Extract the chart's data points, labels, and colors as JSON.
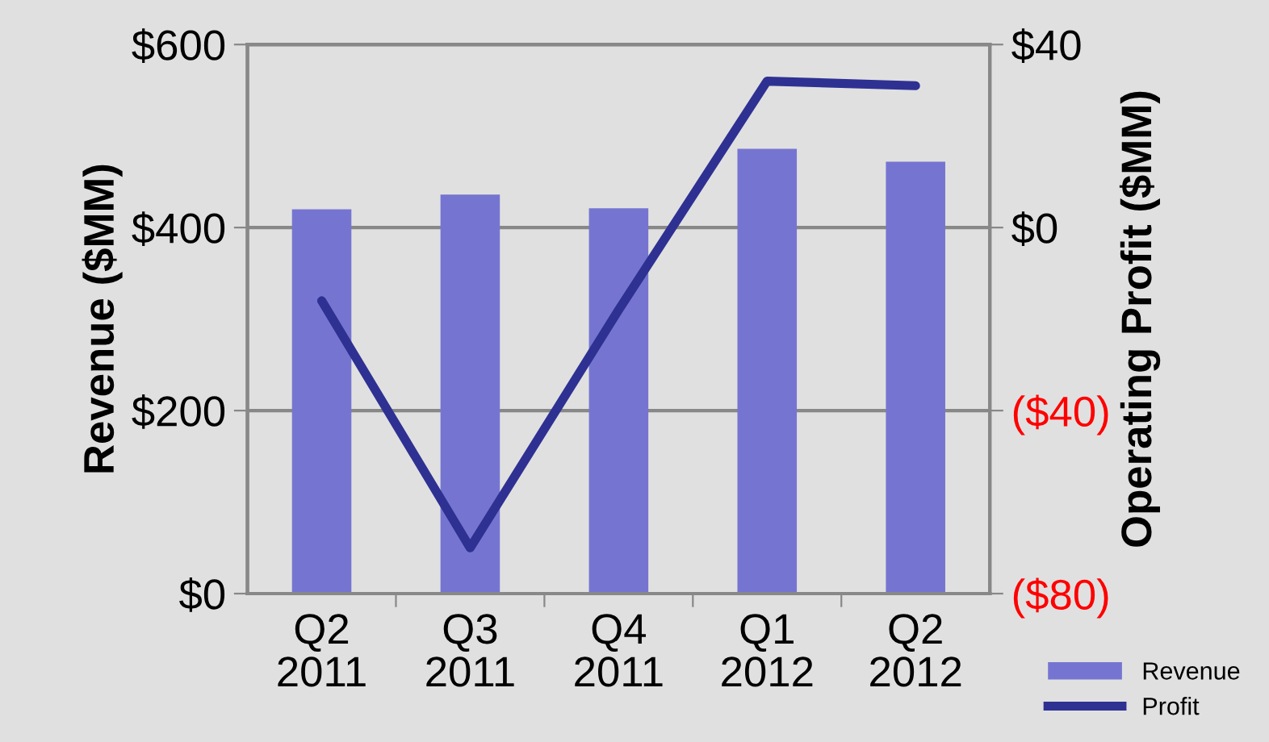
{
  "chart_data": {
    "type": "bar",
    "categories": [
      "Q2\n2011",
      "Q3\n2011",
      "Q4\n2011",
      "Q1\n2012",
      "Q2\n2012"
    ],
    "ylabel": "Revenue ($MM)",
    "y2label": "Operating Profit ($MM)",
    "series": [
      {
        "name": "Revenue",
        "color": "#7575d1",
        "values": [
          420,
          436,
          421,
          486,
          472
        ]
      },
      {
        "name": "Profit",
        "type": "line",
        "axis": "y2",
        "color": "#2e3192",
        "values": [
          -16,
          -70,
          -18,
          32,
          31
        ]
      }
    ],
    "ylim": [
      0,
      600
    ],
    "yticks": [
      {
        "value": 0,
        "label": "$0"
      },
      {
        "value": 200,
        "label": "$200"
      },
      {
        "value": 400,
        "label": "$400"
      },
      {
        "value": 600,
        "label": "$600"
      }
    ],
    "y2lim": [
      -80,
      40
    ],
    "y2ticks": [
      {
        "value": -80,
        "label": "($80)"
      },
      {
        "value": -40,
        "label": "($40)"
      },
      {
        "value": 0,
        "label": "$0"
      },
      {
        "value": 40,
        "label": "$40"
      }
    ],
    "grid": "y",
    "legend": "bottom right",
    "marker": "none",
    "line_style": "solid"
  }
}
